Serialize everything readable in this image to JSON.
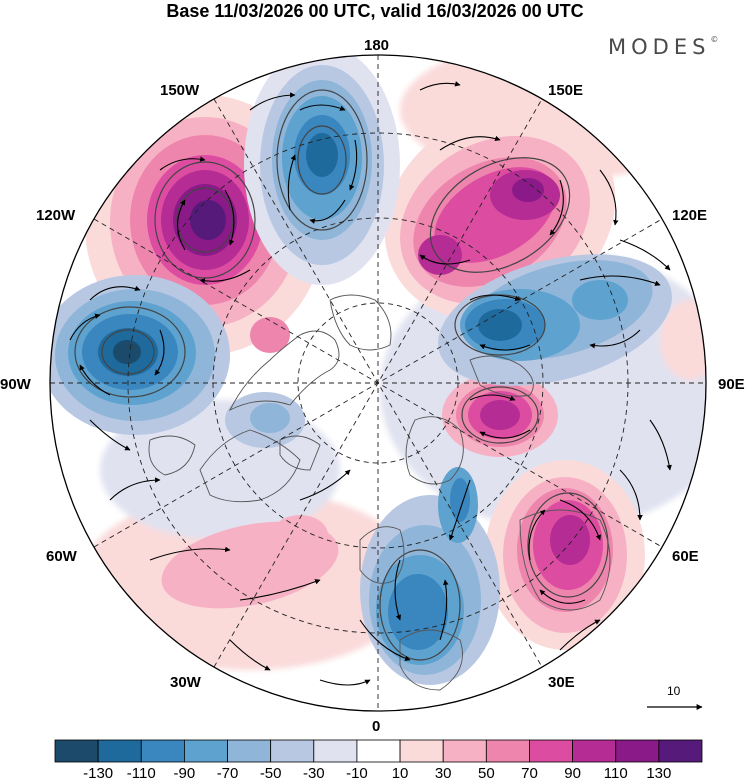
{
  "title": "Base 11/03/2026 00 UTC, valid 16/03/2026 00 UTC",
  "brand": {
    "name": "MODES",
    "mark": "©"
  },
  "longitude_labels": {
    "north": "180",
    "south": "0",
    "west": "90W",
    "east": "90E",
    "nw_upper": "150W",
    "nw_lower": "120W",
    "ne_upper": "150E",
    "ne_lower": "120E",
    "sw_upper": "60W",
    "sw_lower": "30W",
    "se_upper": "60E",
    "se_lower": "30E"
  },
  "reference_vector": {
    "value": "10"
  },
  "colorbar": {
    "ticks": [
      "-130",
      "-110",
      "-90",
      "-70",
      "-50",
      "-30",
      "-10",
      "10",
      "30",
      "50",
      "70",
      "90",
      "110",
      "130"
    ],
    "colors": [
      "#1b4a6b",
      "#1f6a9c",
      "#3a86bf",
      "#5ea2cf",
      "#8fb5d9",
      "#b8c8e3",
      "#e0e2f0",
      "#ffffff",
      "#fbdada",
      "#f6b2c4",
      "#ee85ad",
      "#dc4ca0",
      "#b42c94",
      "#8a1a88",
      "#561a7a"
    ]
  },
  "colors": {
    "land_outline": "#555555",
    "grid": "#222222",
    "contour": "#444444"
  }
}
